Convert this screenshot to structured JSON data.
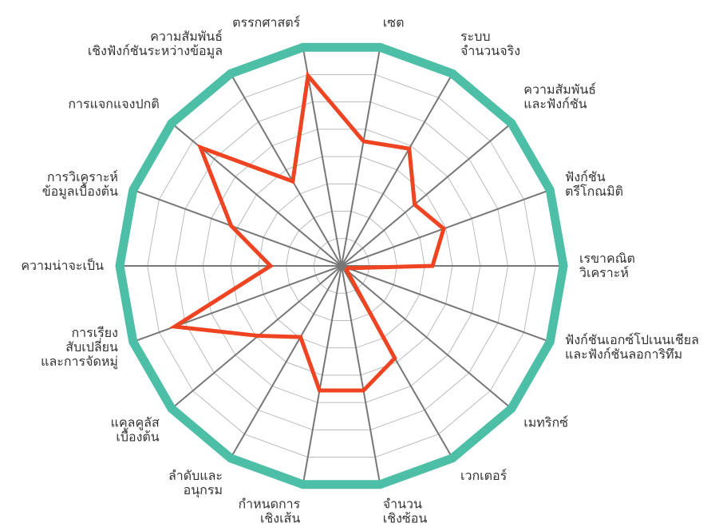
{
  "chart_data": {
    "type": "radar",
    "categories": [
      [
        "ตรรกศาสตร์"
      ],
      [
        "เซต"
      ],
      [
        "ระบบ",
        "จำนวนจริง"
      ],
      [
        "ความสัมพันธ์",
        "และฟังก์ชัน"
      ],
      [
        "ฟังก์ชัน",
        "ตรีโกณมิติ"
      ],
      [
        "เรขาคณิต",
        "วิเคราะห์"
      ],
      [
        "ฟังก์ชันเอกซ์โปเนนเชียล",
        "และฟังก์ชันลอการิทึม"
      ],
      [
        "เมทริกซ์"
      ],
      [
        "เวกเตอร์"
      ],
      [
        "จำนวน",
        "เชิงซ้อน"
      ],
      [
        "กำหนดการ",
        "เชิงเส้น"
      ],
      [
        "ลำดับและ",
        "อนุกรม"
      ],
      [
        "แคลคูลัส",
        "เบื้องต้น"
      ],
      [
        "การเรียง",
        "สับเปลี่ยน",
        "และการจัดหมู่"
      ],
      [
        "ความน่าจะเป็น"
      ],
      [
        "การวิเคราะห์",
        "ข้อมูลเบื้องต้น"
      ],
      [
        "การแจกแจงปกติ"
      ],
      [
        "ความสัมพันธ์",
        "เชิงฟังก์ชันระหว่างข้อมูล"
      ]
    ],
    "values": [
      87,
      57,
      61,
      43,
      49,
      41,
      3,
      3,
      48,
      57,
      57,
      37,
      49,
      80,
      32,
      53,
      83,
      44
    ],
    "color": "#ee4422",
    "outline_color": "#4dbfa6",
    "rlim": [
      0,
      100
    ],
    "rticks": [
      12.5,
      25,
      37.5,
      50,
      62.5,
      75,
      87.5
    ],
    "grid": true
  }
}
